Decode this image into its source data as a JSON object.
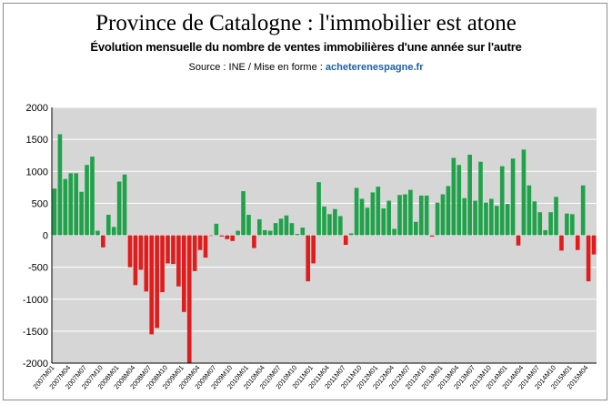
{
  "title": "Province de Catalogne : l'immobilier est atone",
  "subtitle": "Évolution mensuelle du nombre de ventes immobilières d'une année sur l'autre",
  "source_prefix": "Source : INE / Mise en forme : ",
  "source_link": "acheterenespagne.fr",
  "colors": {
    "positive": "#1fa24a",
    "negative": "#e01c1c",
    "plot_bg": "#d6d6d6",
    "grid": "#ffffff"
  },
  "chart_data": {
    "type": "bar",
    "title": "Province de Catalogne : l'immobilier est atone",
    "subtitle": "Évolution mensuelle du nombre de ventes immobilières d'une année sur l'autre",
    "xlabel": "",
    "ylabel": "",
    "ylim": [
      -2000,
      2000
    ],
    "yticks": [
      2000,
      1500,
      1000,
      500,
      0,
      -500,
      -1000,
      -1500,
      -2000
    ],
    "grid": true,
    "legend": "none",
    "tick_labels": [
      "2007M01",
      "2007M04",
      "2007M07",
      "2007M10",
      "2008M01",
      "2008M04",
      "2008M07",
      "2008M10",
      "2009M01",
      "2009M04",
      "2009M07",
      "2009M10",
      "2010M01",
      "2010M04",
      "2010M07",
      "2010M10",
      "2011M01",
      "2011M04",
      "2011M07",
      "2011M10",
      "2012M01",
      "2012M04",
      "2012M07",
      "2012M10",
      "2013M01",
      "2013M04",
      "2013M07",
      "2013M10",
      "2014M01",
      "2014M04",
      "2014M07",
      "2014M10",
      "2015M01",
      "2015M04"
    ],
    "values": [
      730,
      1580,
      880,
      970,
      970,
      680,
      1100,
      1230,
      70,
      -190,
      320,
      130,
      840,
      950,
      -500,
      -780,
      -540,
      -880,
      -1550,
      -1450,
      -890,
      -440,
      -450,
      -800,
      -1200,
      -2000,
      -560,
      -230,
      -350,
      -10,
      180,
      -20,
      -60,
      -90,
      70,
      690,
      320,
      -200,
      250,
      80,
      70,
      190,
      260,
      310,
      190,
      20,
      120,
      -720,
      -440,
      830,
      450,
      330,
      410,
      300,
      -150,
      30,
      740,
      570,
      430,
      670,
      760,
      420,
      540,
      100,
      630,
      640,
      710,
      210,
      620,
      620,
      -20,
      510,
      640,
      770,
      1210,
      1100,
      580,
      1260,
      540,
      1150,
      510,
      570,
      460,
      1080,
      490,
      1200,
      -160,
      1340,
      780,
      530,
      360,
      80,
      360,
      600,
      -240,
      340,
      330,
      -230,
      780,
      -720,
      -300
    ]
  }
}
